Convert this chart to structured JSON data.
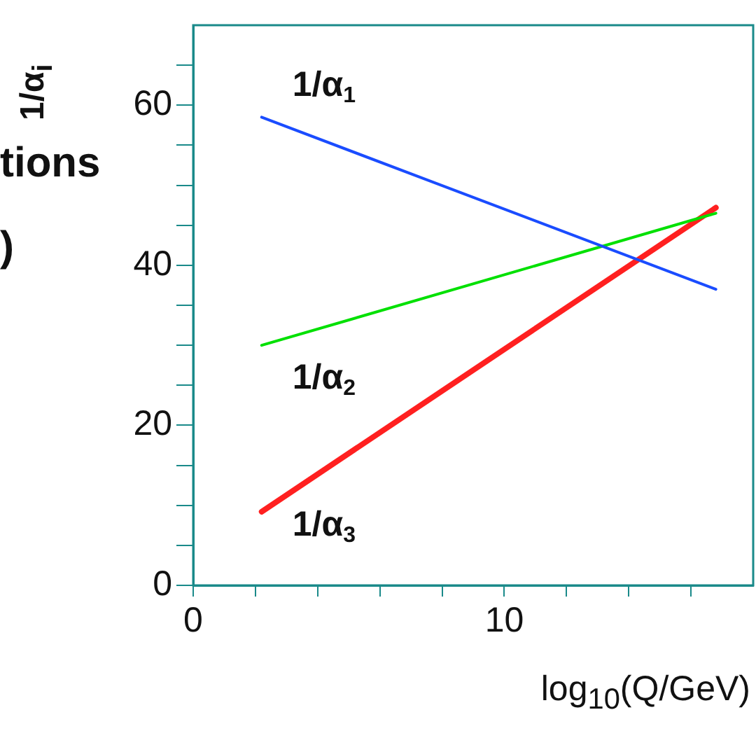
{
  "chart_data": {
    "type": "line",
    "xlabel": "log$_{10}$(Q/GeV)",
    "ylabel": "1/α$_{i}$",
    "xlim": [
      0,
      18
    ],
    "ylim": [
      0,
      70
    ],
    "xticks": [
      0,
      {
        "value": 2,
        "label": null
      },
      {
        "value": 4,
        "label": null
      },
      {
        "value": 6,
        "label": null
      },
      {
        "value": 8,
        "label": null
      },
      10,
      {
        "value": 12,
        "label": null
      },
      {
        "value": 14,
        "label": null
      },
      {
        "value": 16,
        "label": null
      }
    ],
    "yticks": [
      0,
      {
        "value": 5,
        "label": null
      },
      {
        "value": 10,
        "label": null
      },
      {
        "value": 15,
        "label": null
      },
      20,
      {
        "value": 25,
        "label": null
      },
      {
        "value": 30,
        "label": null
      },
      {
        "value": 35,
        "label": null
      },
      40,
      {
        "value": 45,
        "label": null
      },
      {
        "value": 50,
        "label": null
      },
      {
        "value": 55,
        "label": null
      },
      60,
      {
        "value": 65,
        "label": null
      }
    ],
    "x": [
      2.2,
      16.8
    ],
    "series": [
      {
        "name": "1/α$_{1}$",
        "color": "#1a4cff",
        "values": [
          58.5,
          37
        ]
      },
      {
        "name": "1/α$_{2}$",
        "color": "#00e000",
        "values": [
          30,
          46.5
        ]
      },
      {
        "name": "1/α$_{3}$",
        "color": "#ff2020",
        "values": [
          9.2,
          47.2
        ]
      }
    ],
    "annotations": [
      "tions",
      ")"
    ],
    "grid": false,
    "legend": false,
    "marker": "none",
    "line_style": "solid"
  }
}
